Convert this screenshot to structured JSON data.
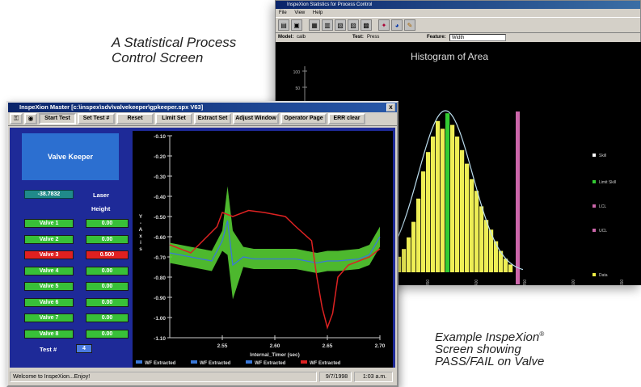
{
  "captions": {
    "spc_title_line1": "A Statistical Process",
    "spc_title_line2": "Control Screen",
    "example_line1": "Example InspeXion",
    "example_reg": "®",
    "example_line2": "Screen showing",
    "example_line3": "PASS/FAIL on Valve"
  },
  "spc_window": {
    "title": "InspeXion Statistics for Process Control",
    "menu": [
      "File",
      "View",
      "Help"
    ],
    "fields": {
      "model_label": "Model:",
      "model_value": "calb",
      "test_label": "Test:",
      "test_value": "Press",
      "feature_label": "Feature:",
      "feature_value": "Width"
    },
    "toolbar_icons": [
      "open-icon",
      "save-icon",
      "print-icon",
      "chart-icon",
      "data-icon",
      "table-icon",
      "histogram-icon",
      "scatter-icon",
      "pie-icon",
      "export-icon"
    ]
  },
  "master_window": {
    "title": "InspeXion Master [c:\\inspex\\sdv\\valvekeeper\\gpkeeper.spx V63]",
    "close": "x",
    "toolbar": {
      "start_test": "Start Test",
      "set_test": "Set Test #",
      "reset": "Reset",
      "limit_set": "Limit Set",
      "extract_set": "Extract Set",
      "adjust_window": "Adjust Window",
      "operator_page": "Operator Page",
      "err_clear": "ERR clear"
    },
    "panel_title": "Valve Keeper",
    "readout": "-38.7832",
    "laser_label": "Laser",
    "height_label": "Height",
    "test_label": "Test #",
    "test_number": "4",
    "status": {
      "message": "Welcome to InspeXion...Enjoy!",
      "date": "9/7/1998",
      "time": "1:03 a.m."
    }
  },
  "chart_data": [
    {
      "type": "histogram",
      "title": "Histogram of Area",
      "yticks": [
        "100",
        "50"
      ],
      "xticks": [
        "350",
        "400",
        "450",
        "500",
        "550"
      ],
      "legend": [
        {
          "label": "Skill",
          "color": "#ffffff"
        },
        {
          "label": "Limit Skill",
          "color": "#33cc33"
        },
        {
          "label": "LCL",
          "color": "#cc66aa"
        },
        {
          "label": "UCL",
          "color": "#cc66aa"
        },
        {
          "label": "Data",
          "color": "#eeee44"
        }
      ],
      "lcl_x": 300,
      "ucl_x": 450,
      "bins": [
        {
          "x": 290,
          "h": 8
        },
        {
          "x": 295,
          "h": 12
        },
        {
          "x": 300,
          "h": 18
        },
        {
          "x": 305,
          "h": 26
        },
        {
          "x": 310,
          "h": 38
        },
        {
          "x": 315,
          "h": 52
        },
        {
          "x": 320,
          "h": 62
        },
        {
          "x": 325,
          "h": 70
        },
        {
          "x": 330,
          "h": 78
        },
        {
          "x": 335,
          "h": 74
        },
        {
          "x": 340,
          "h": 82
        },
        {
          "x": 345,
          "h": 76
        },
        {
          "x": 350,
          "h": 70
        },
        {
          "x": 355,
          "h": 63
        },
        {
          "x": 360,
          "h": 56
        },
        {
          "x": 365,
          "h": 48
        },
        {
          "x": 370,
          "h": 42
        },
        {
          "x": 375,
          "h": 34
        },
        {
          "x": 380,
          "h": 27
        },
        {
          "x": 385,
          "h": 22
        },
        {
          "x": 390,
          "h": 16
        },
        {
          "x": 395,
          "h": 11
        },
        {
          "x": 400,
          "h": 7
        },
        {
          "x": 405,
          "h": 4
        }
      ]
    },
    {
      "type": "line",
      "ylabel": "Y-Axis",
      "xlabel": "Internal_Timer (sec)",
      "ylim": [
        -1.1,
        -0.1
      ],
      "xlim": [
        2.5,
        2.7
      ],
      "yticks": [
        "-0.10",
        "-0.20",
        "-0.30",
        "-0.40",
        "-0.50",
        "-0.60",
        "-0.70",
        "-0.80",
        "-0.90",
        "-1.00",
        "-1.10"
      ],
      "xticks": [
        "2.55",
        "2.60",
        "2.65",
        "2.70"
      ],
      "legend": [
        {
          "label": "WF Extracted",
          "color": "#3a78d8"
        },
        {
          "label": "WF Extracted",
          "color": "#3a78d8"
        },
        {
          "label": "WF Extracted",
          "color": "#3a78d8"
        },
        {
          "label": "WF Extracted",
          "color": "#dd2222"
        }
      ],
      "red_series": {
        "x": [
          2.5,
          2.52,
          2.545,
          2.55,
          2.56,
          2.575,
          2.59,
          2.61,
          2.62,
          2.635,
          2.64,
          2.645,
          2.65,
          2.655,
          2.66,
          2.67,
          2.69,
          2.7
        ],
        "y": [
          -0.64,
          -0.68,
          -0.55,
          -0.48,
          -0.5,
          -0.47,
          -0.48,
          -0.5,
          -0.55,
          -0.62,
          -0.8,
          -0.95,
          -1.05,
          -0.98,
          -0.8,
          -0.74,
          -0.7,
          -0.66
        ]
      },
      "band_series": {
        "x": [
          2.5,
          2.52,
          2.54,
          2.55,
          2.555,
          2.56,
          2.57,
          2.58,
          2.6,
          2.62,
          2.64,
          2.65,
          2.66,
          2.68,
          2.69,
          2.7
        ],
        "y": [
          -0.68,
          -0.7,
          -0.72,
          -0.62,
          -0.52,
          -0.74,
          -0.7,
          -0.71,
          -0.71,
          -0.71,
          -0.73,
          -0.72,
          -0.72,
          -0.71,
          -0.69,
          -0.6
        ]
      }
    }
  ],
  "valves": [
    {
      "label": "Valve 1",
      "value": "0.00",
      "status": "pass"
    },
    {
      "label": "Valve 2",
      "value": "0.00",
      "status": "pass"
    },
    {
      "label": "Valve 3",
      "value": "0.500",
      "status": "fail"
    },
    {
      "label": "Valve 4",
      "value": "0.00",
      "status": "pass"
    },
    {
      "label": "Valve 5",
      "value": "0.00",
      "status": "pass"
    },
    {
      "label": "Valve 6",
      "value": "0.00",
      "status": "pass"
    },
    {
      "label": "Valve 7",
      "value": "0.00",
      "status": "pass"
    },
    {
      "label": "Valve 8",
      "value": "0.00",
      "status": "pass"
    }
  ]
}
